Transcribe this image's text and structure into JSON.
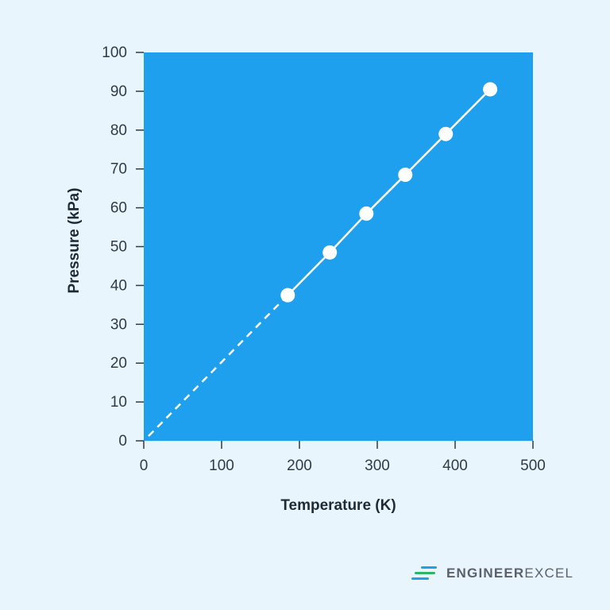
{
  "chart_data": {
    "type": "line",
    "xlabel": "Temperature (K)",
    "ylabel": "Pressure (kPa)",
    "xlim": [
      0,
      500
    ],
    "ylim": [
      0,
      100
    ],
    "x_ticks": [
      0,
      100,
      200,
      300,
      400,
      500
    ],
    "y_ticks": [
      0,
      10,
      20,
      30,
      40,
      50,
      60,
      70,
      80,
      90,
      100
    ],
    "grid": false,
    "series": [
      {
        "x": [
          185,
          239,
          286,
          336,
          388,
          445
        ],
        "y": [
          37.5,
          48.5,
          58.5,
          68.5,
          79,
          90.5
        ]
      }
    ],
    "extrapolation": {
      "x": [
        0,
        185
      ],
      "y": [
        0,
        37.5
      ],
      "style": "dashed"
    },
    "colors": {
      "plot_background": "#1ea0ef",
      "page_background": "#e8f5fd",
      "series": "#ffffff",
      "axis": "#2f3b46"
    }
  },
  "branding": {
    "logo_icon": "stacked-lines-icon",
    "text_part1": "ENGINEER",
    "text_part2": "EXCEL",
    "colors": [
      "#2fb36a",
      "#1ea0ef",
      "#5a6168"
    ]
  }
}
